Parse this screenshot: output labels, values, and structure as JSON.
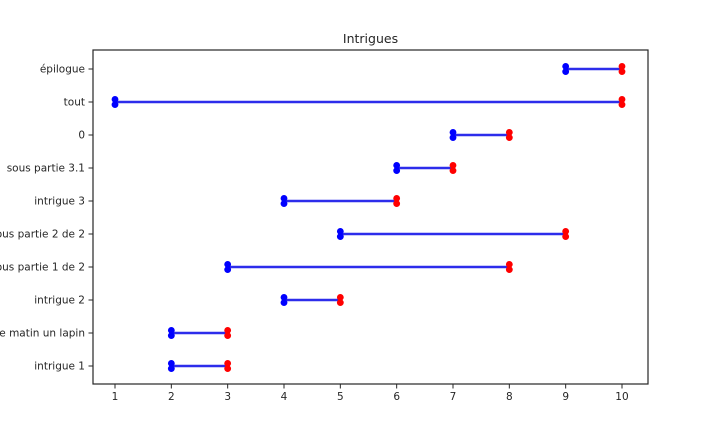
{
  "chart_data": {
    "type": "gantt",
    "title": "Intrigues",
    "xlabel": "",
    "ylabel": "",
    "grid": false,
    "legend": "none",
    "xlim": [
      0.55,
      10.45
    ],
    "xticks": [
      "1",
      "2",
      "3",
      "4",
      "5",
      "6",
      "7",
      "8",
      "9",
      "10"
    ],
    "rows_top_to_bottom": [
      {
        "label": "épilogue",
        "start": 9,
        "end": 10
      },
      {
        "label": "tout",
        "start": 1,
        "end": 10
      },
      {
        "label": "0",
        "start": 7,
        "end": 8
      },
      {
        "label": "sous partie 3.1",
        "start": 6,
        "end": 7
      },
      {
        "label": "intrigue 3",
        "start": 4,
        "end": 6
      },
      {
        "label": "ous partie 2 de 2",
        "start": 5,
        "end": 9
      },
      {
        "label": "ous partie 1 de 2",
        "start": 3,
        "end": 8
      },
      {
        "label": "intrigue 2",
        "start": 4,
        "end": 5
      },
      {
        "label": "e matin un lapin",
        "start": 2,
        "end": 3
      },
      {
        "label": "intrigue 1",
        "start": 2,
        "end": 3
      }
    ],
    "colors": {
      "start_marker": "#0000ff",
      "end_marker": "#ff0000",
      "line": "#2d2deb",
      "spine": "#262626",
      "text": "#262626",
      "background": "#ffffff"
    }
  }
}
